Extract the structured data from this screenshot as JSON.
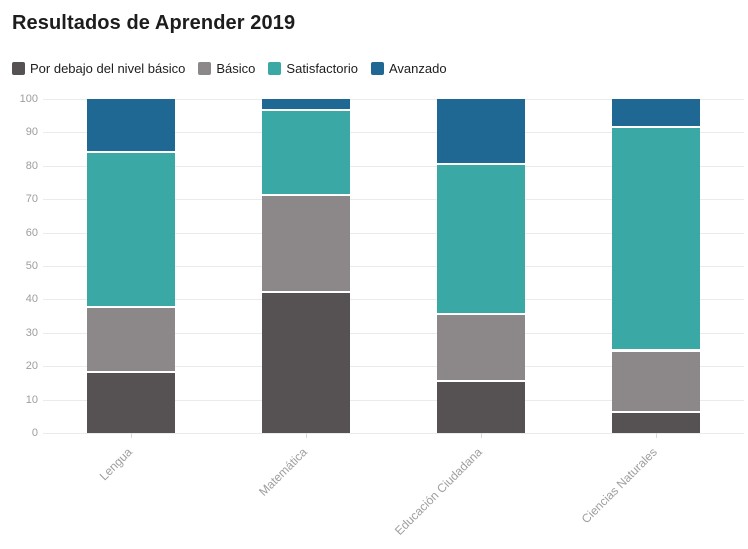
{
  "header": {
    "title": "Resultados de Aprender 2019"
  },
  "legend": {
    "items": [
      {
        "label": "Por debajo del nivel básico",
        "color": "#565253"
      },
      {
        "label": "Básico",
        "color": "#8c8889"
      },
      {
        "label": "Satisfactorio",
        "color": "#3aa8a4"
      },
      {
        "label": "Avanzado",
        "color": "#1f6893"
      }
    ]
  },
  "colors": {
    "below_basic": "#565253",
    "basic": "#8c8889",
    "satisfactory": "#3aa8a4",
    "advanced": "#1f6893",
    "gridline": "#ebebeb",
    "axis_text": "#9d9d9d",
    "title_text": "#1d1d1d"
  },
  "chart_data": {
    "type": "bar",
    "stacked": true,
    "title": "Resultados de Aprender 2019",
    "categories": [
      "Lengua",
      "Matemática",
      "Educación Ciudadana",
      "Ciencias Naturales"
    ],
    "series": [
      {
        "name": "Por debajo del nivel básico",
        "color": "#565253",
        "values": [
          18.5,
          42.5,
          16,
          6.5
        ]
      },
      {
        "name": "Básico",
        "color": "#8c8889",
        "values": [
          19.5,
          29,
          20,
          18.5
        ]
      },
      {
        "name": "Satisfactorio",
        "color": "#3aa8a4",
        "values": [
          46.5,
          25.5,
          45,
          67
        ]
      },
      {
        "name": "Avanzado",
        "color": "#1f6893",
        "values": [
          15.5,
          3,
          19,
          8
        ]
      }
    ],
    "xlabel": "",
    "ylabel": "",
    "ylim": [
      0,
      100
    ],
    "yticks": [
      0,
      10,
      20,
      30,
      40,
      50,
      60,
      70,
      80,
      90,
      100
    ],
    "grid": true,
    "legend_position": "top",
    "bar_gap_color": "#ffffff"
  }
}
